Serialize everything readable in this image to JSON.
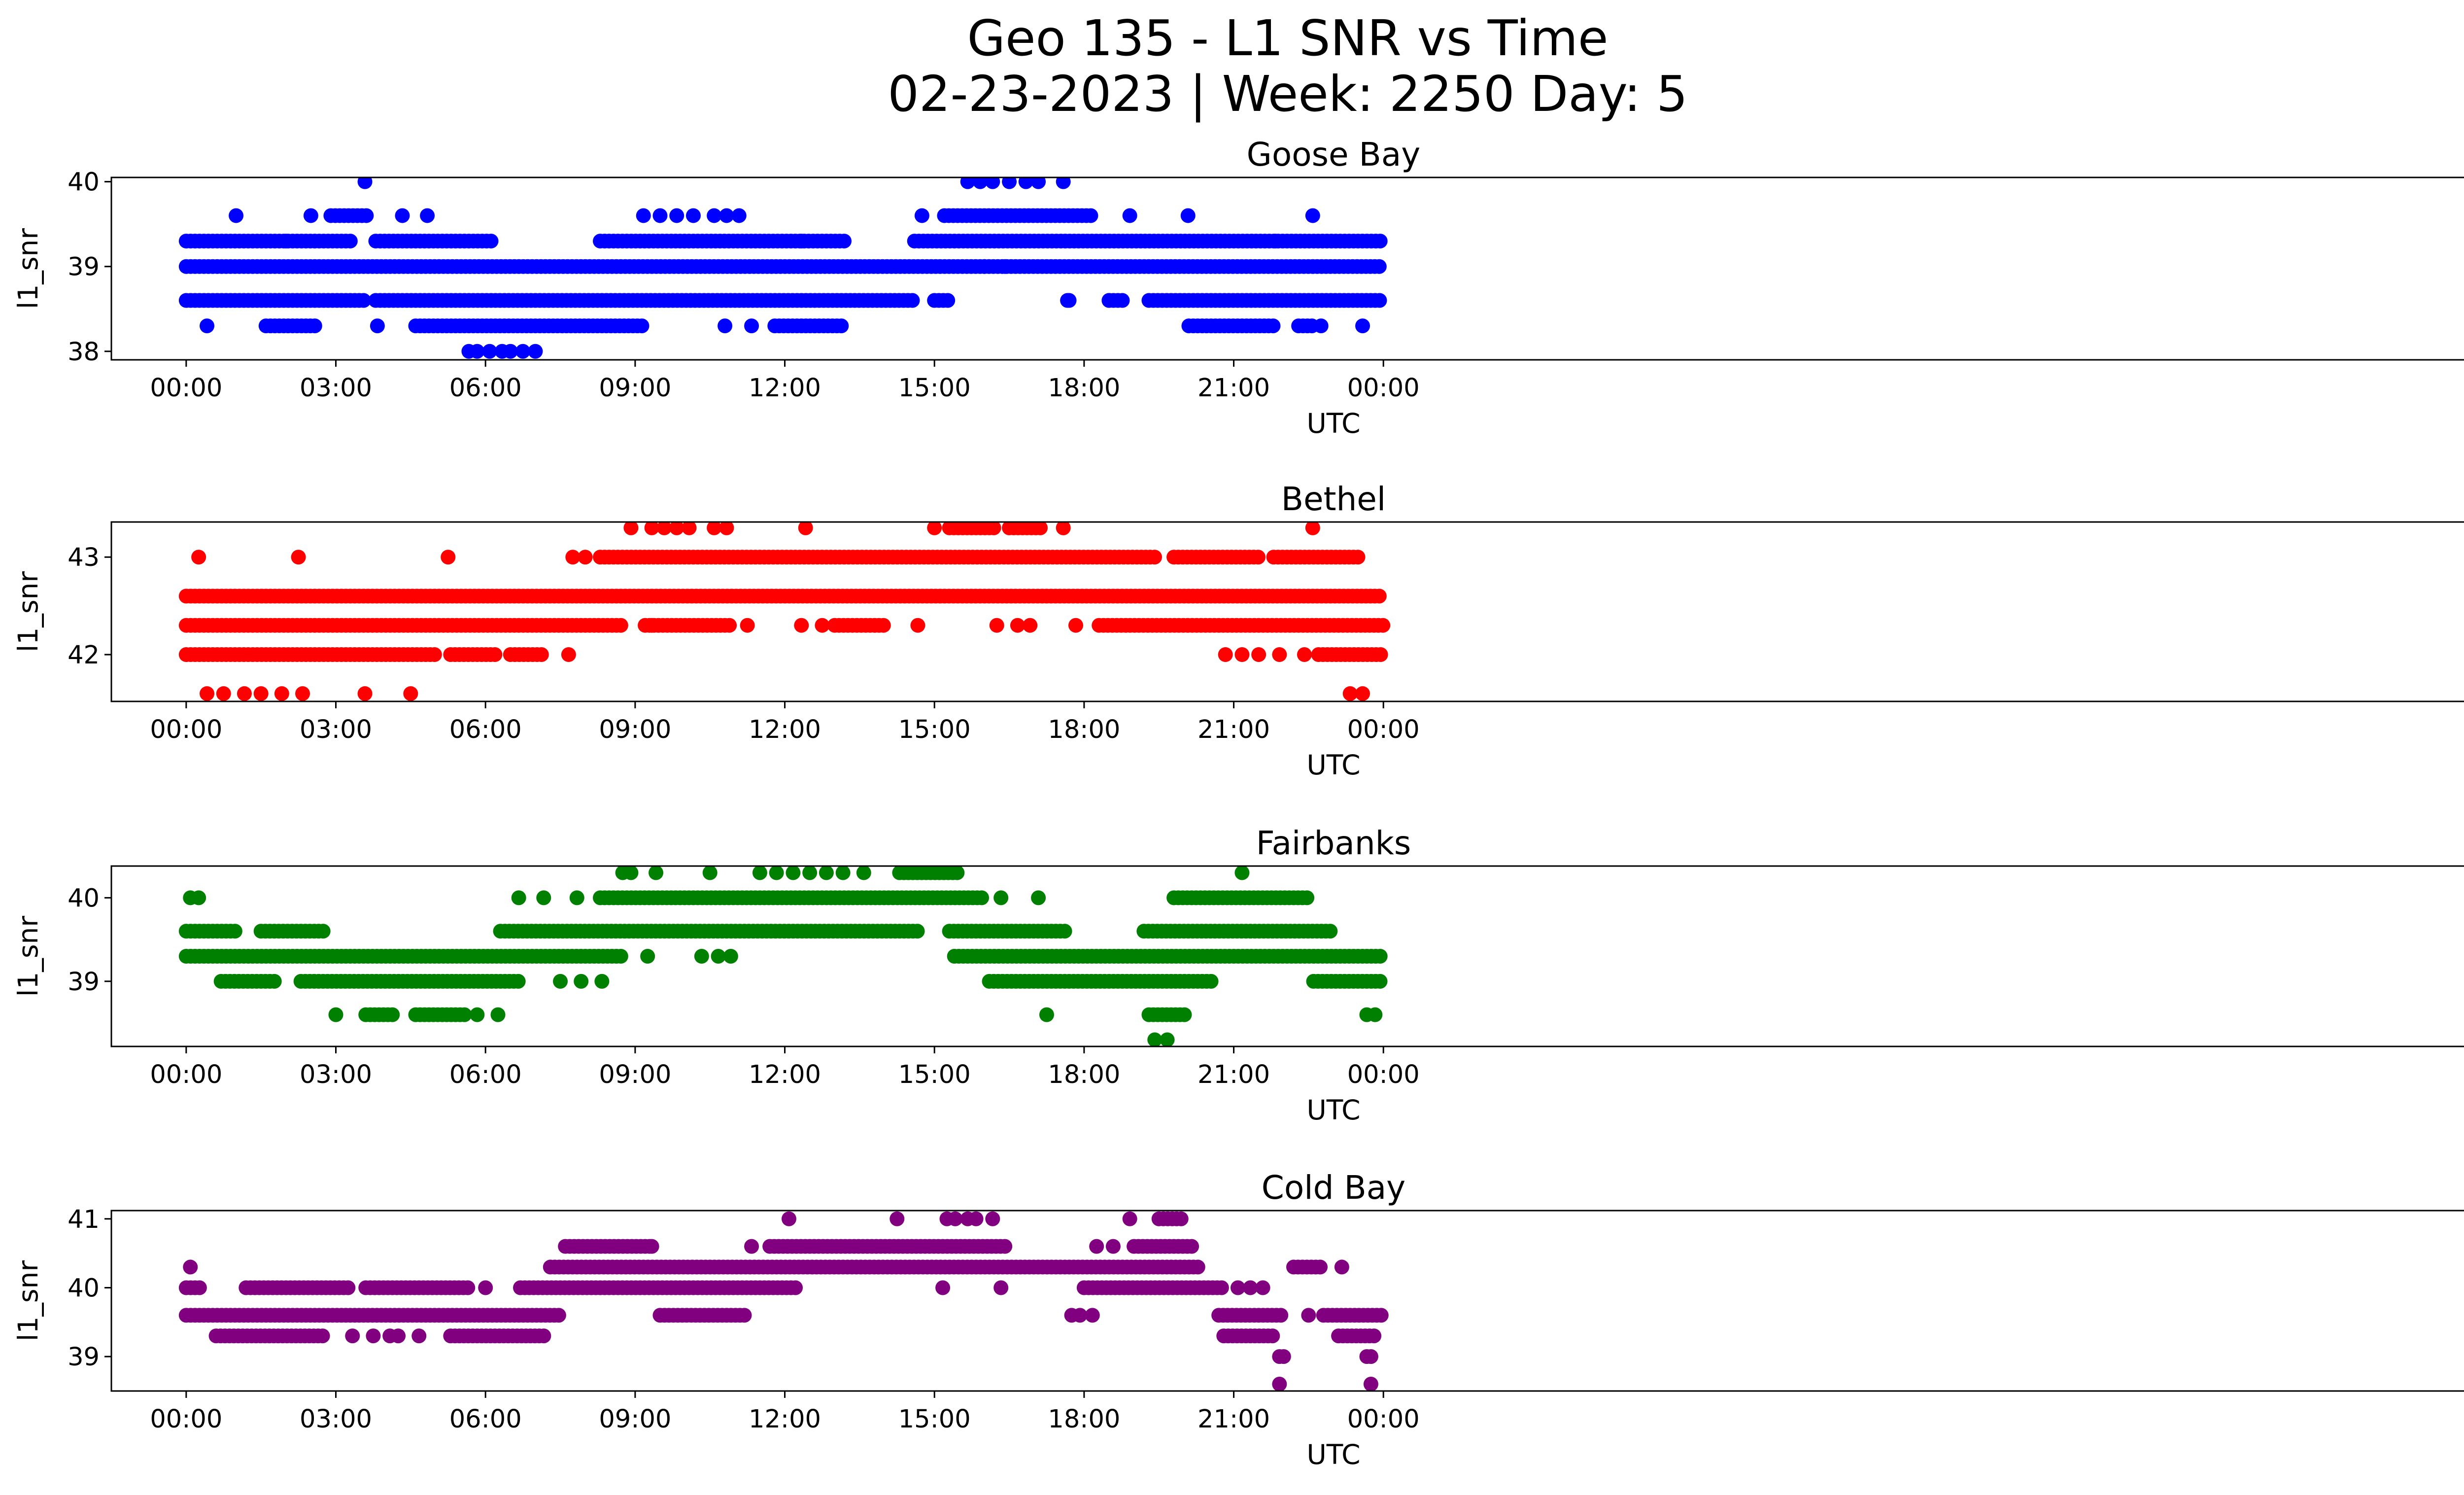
{
  "figure": {
    "title_line1": "Geo 135 - L1 SNR vs Time",
    "title_line2": "02-23-2023 | Week: 2250 Day: 5"
  },
  "chart_data": [
    {
      "type": "scatter",
      "title": "Goose Bay",
      "xlabel": "UTC",
      "ylabel": "l1_snr",
      "color": "#0000ff",
      "xlim": [
        "-01:30",
        "23:30 +1d"
      ],
      "ylim": [
        37.9,
        40.05
      ],
      "xticks": [
        "00:00",
        "03:00",
        "06:00",
        "09:00",
        "12:00",
        "15:00",
        "18:00",
        "21:00",
        "00:00"
      ],
      "yticks": [
        38,
        39,
        40
      ],
      "bands": [
        {
          "y": 39.3,
          "segments": [
            [
              0.0,
              3.3
            ],
            [
              3.8,
              6.2
            ],
            [
              8.3,
              13.2
            ],
            [
              14.6,
              24.0
            ]
          ]
        },
        {
          "y": 39.0,
          "segments": [
            [
              0.0,
              24.0
            ]
          ]
        },
        {
          "y": 38.6,
          "segments": [
            [
              0.0,
              3.6
            ],
            [
              3.8,
              14.6
            ],
            [
              15.0,
              15.3
            ],
            [
              17.7,
              17.7
            ],
            [
              18.5,
              18.8
            ],
            [
              19.3,
              24.0
            ]
          ]
        },
        {
          "y": 38.3,
          "segments": [
            [
              1.6,
              2.6
            ],
            [
              4.6,
              9.2
            ],
            [
              10.8,
              10.8
            ],
            [
              11.8,
              13.2
            ],
            [
              20.1,
              21.8
            ],
            [
              22.3,
              22.6
            ]
          ]
        },
        {
          "y": 39.6,
          "segments": [
            [
              2.9,
              3.7
            ],
            [
              15.2,
              18.2
            ]
          ]
        }
      ],
      "points": [
        [
          "00:25",
          38.3
        ],
        [
          "01:00",
          39.6
        ],
        [
          "02:00",
          39.3
        ],
        [
          "02:30",
          39.6
        ],
        [
          "03:35",
          40.0
        ],
        [
          "03:50",
          38.3
        ],
        [
          "04:20",
          39.6
        ],
        [
          "04:50",
          39.6
        ],
        [
          "05:40",
          38.0
        ],
        [
          "05:50",
          38.0
        ],
        [
          "06:05",
          38.0
        ],
        [
          "06:20",
          38.0
        ],
        [
          "06:30",
          38.0
        ],
        [
          "06:45",
          38.0
        ],
        [
          "07:00",
          38.0
        ],
        [
          "09:10",
          39.6
        ],
        [
          "09:30",
          39.6
        ],
        [
          "09:50",
          39.6
        ],
        [
          "10:10",
          39.6
        ],
        [
          "10:35",
          39.6
        ],
        [
          "10:50",
          39.6
        ],
        [
          "11:05",
          39.6
        ],
        [
          "11:20",
          38.3
        ],
        [
          "12:20",
          39.3
        ],
        [
          "14:45",
          39.6
        ],
        [
          "15:40",
          40.0
        ],
        [
          "15:55",
          40.0
        ],
        [
          "16:10",
          40.0
        ],
        [
          "16:30",
          40.0
        ],
        [
          "16:50",
          40.0
        ],
        [
          "17:05",
          40.0
        ],
        [
          "17:35",
          40.0
        ],
        [
          "16:00",
          39.0
        ],
        [
          "16:25",
          39.0
        ],
        [
          "17:40",
          38.6
        ],
        [
          "18:30",
          38.6
        ],
        [
          "18:55",
          39.6
        ],
        [
          "20:05",
          39.6
        ],
        [
          "21:50",
          39.3
        ],
        [
          "22:35",
          39.6
        ],
        [
          "22:45",
          38.3
        ],
        [
          "23:35",
          38.3
        ]
      ]
    },
    {
      "type": "scatter",
      "title": "Bethel",
      "xlabel": "UTC",
      "ylabel": "l1_snr",
      "color": "#ff0000",
      "xlim": [
        "-01:30",
        "23:30 +1d"
      ],
      "ylim": [
        41.52,
        43.36
      ],
      "xticks": [
        "00:00",
        "03:00",
        "06:00",
        "09:00",
        "12:00",
        "15:00",
        "18:00",
        "21:00",
        "00:00"
      ],
      "yticks": [
        42,
        43
      ],
      "bands": [
        {
          "y": 42.6,
          "segments": [
            [
              0.0,
              24.0
            ]
          ]
        },
        {
          "y": 42.3,
          "segments": [
            [
              0.0,
              8.8
            ],
            [
              9.2,
              10.9
            ],
            [
              13.0,
              14.0
            ],
            [
              18.3,
              24.0
            ]
          ]
        },
        {
          "y": 42.0,
          "segments": [
            [
              0.0,
              5.0
            ],
            [
              5.3,
              6.2
            ],
            [
              6.5,
              7.2
            ],
            [
              22.7,
              24.0
            ]
          ]
        },
        {
          "y": 43.0,
          "segments": [
            [
              8.3,
              19.5
            ],
            [
              19.8,
              21.5
            ],
            [
              21.8,
              23.5
            ]
          ]
        },
        {
          "y": 43.3,
          "segments": [
            [
              15.3,
              16.2
            ],
            [
              16.5,
              17.2
            ]
          ]
        }
      ],
      "points": [
        [
          "00:15",
          43.0
        ],
        [
          "02:15",
          43.0
        ],
        [
          "05:15",
          43.0
        ],
        [
          "07:45",
          43.0
        ],
        [
          "08:00",
          43.0
        ],
        [
          "00:25",
          41.6
        ],
        [
          "00:45",
          41.6
        ],
        [
          "01:10",
          41.6
        ],
        [
          "01:30",
          41.6
        ],
        [
          "01:55",
          41.6
        ],
        [
          "02:20",
          41.6
        ],
        [
          "03:35",
          41.6
        ],
        [
          "04:30",
          41.6
        ],
        [
          "07:40",
          42.0
        ],
        [
          "08:55",
          43.3
        ],
        [
          "09:20",
          43.3
        ],
        [
          "09:35",
          43.3
        ],
        [
          "09:50",
          43.3
        ],
        [
          "10:05",
          43.3
        ],
        [
          "10:35",
          43.3
        ],
        [
          "10:50",
          43.3
        ],
        [
          "12:25",
          43.3
        ],
        [
          "15:00",
          43.3
        ],
        [
          "17:35",
          43.3
        ],
        [
          "22:35",
          43.3
        ],
        [
          "09:20",
          42.3
        ],
        [
          "11:15",
          42.3
        ],
        [
          "12:20",
          42.3
        ],
        [
          "12:45",
          42.3
        ],
        [
          "14:40",
          42.3
        ],
        [
          "16:15",
          42.3
        ],
        [
          "16:40",
          42.3
        ],
        [
          "16:55",
          42.3
        ],
        [
          "17:50",
          42.3
        ],
        [
          "20:50",
          42.0
        ],
        [
          "21:10",
          42.0
        ],
        [
          "21:30",
          42.0
        ],
        [
          "21:55",
          42.0
        ],
        [
          "22:25",
          42.0
        ],
        [
          "23:20",
          41.6
        ],
        [
          "23:35",
          41.6
        ]
      ]
    },
    {
      "type": "scatter",
      "title": "Fairbanks",
      "xlabel": "UTC",
      "ylabel": "l1_snr",
      "color": "#008000",
      "xlim": [
        "-01:30",
        "23:30 +1d"
      ],
      "ylim": [
        38.22,
        40.38
      ],
      "xticks": [
        "00:00",
        "03:00",
        "06:00",
        "09:00",
        "12:00",
        "15:00",
        "18:00",
        "21:00",
        "00:00"
      ],
      "yticks": [
        39,
        40
      ],
      "bands": [
        {
          "y": 39.6,
          "segments": [
            [
              0.0,
              1.0
            ],
            [
              1.5,
              2.8
            ],
            [
              6.3,
              14.7
            ],
            [
              15.3,
              17.7
            ],
            [
              19.2,
              23.0
            ]
          ]
        },
        {
          "y": 39.3,
          "segments": [
            [
              0.0,
              8.8
            ],
            [
              15.4,
              24.0
            ]
          ]
        },
        {
          "y": 39.0,
          "segments": [
            [
              0.7,
              1.8
            ],
            [
              2.3,
              6.7
            ],
            [
              16.1,
              20.6
            ],
            [
              22.6,
              24.0
            ]
          ]
        },
        {
          "y": 40.0,
          "segments": [
            [
              8.3,
              16.0
            ],
            [
              19.8,
              22.5
            ]
          ]
        },
        {
          "y": 40.3,
          "segments": [
            [
              14.3,
              15.5
            ]
          ]
        },
        {
          "y": 38.6,
          "segments": [
            [
              3.6,
              4.2
            ],
            [
              4.6,
              5.6
            ],
            [
              19.3,
              20.1
            ]
          ]
        }
      ],
      "points": [
        [
          "00:05",
          40.0
        ],
        [
          "00:15",
          40.0
        ],
        [
          "03:00",
          38.6
        ],
        [
          "05:50",
          38.6
        ],
        [
          "06:15",
          38.6
        ],
        [
          "06:40",
          40.0
        ],
        [
          "07:10",
          40.0
        ],
        [
          "07:30",
          39.0
        ],
        [
          "07:50",
          40.0
        ],
        [
          "07:55",
          39.0
        ],
        [
          "08:20",
          39.0
        ],
        [
          "08:45",
          40.3
        ],
        [
          "08:55",
          40.3
        ],
        [
          "09:25",
          40.3
        ],
        [
          "09:15",
          39.3
        ],
        [
          "10:20",
          39.3
        ],
        [
          "10:30",
          40.3
        ],
        [
          "10:40",
          39.3
        ],
        [
          "10:55",
          39.3
        ],
        [
          "11:30",
          40.3
        ],
        [
          "11:50",
          40.3
        ],
        [
          "12:10",
          40.3
        ],
        [
          "12:30",
          40.3
        ],
        [
          "12:50",
          40.3
        ],
        [
          "13:10",
          40.3
        ],
        [
          "13:35",
          40.3
        ],
        [
          "16:20",
          40.0
        ],
        [
          "17:05",
          40.0
        ],
        [
          "17:15",
          38.6
        ],
        [
          "19:25",
          38.3
        ],
        [
          "19:40",
          38.3
        ],
        [
          "21:10",
          40.3
        ],
        [
          "23:40",
          38.6
        ],
        [
          "23:50",
          38.6
        ]
      ]
    },
    {
      "type": "scatter",
      "title": "Cold Bay",
      "xlabel": "UTC",
      "ylabel": "l1_snr",
      "color": "#800080",
      "xlim": [
        "-01:30",
        "23:30 +1d"
      ],
      "ylim": [
        38.5,
        41.12
      ],
      "xticks": [
        "00:00",
        "03:00",
        "06:00",
        "09:00",
        "12:00",
        "15:00",
        "18:00",
        "21:00",
        "00:00"
      ],
      "yticks": [
        39,
        40,
        41
      ],
      "bands": [
        {
          "y": 40.0,
          "segments": [
            [
              0.0,
              0.3
            ],
            [
              1.2,
              3.3
            ],
            [
              3.6,
              5.7
            ],
            [
              6.7,
              12.3
            ],
            [
              18.0,
              20.8
            ]
          ]
        },
        {
          "y": 39.6,
          "segments": [
            [
              0.0,
              7.5
            ],
            [
              9.5,
              11.2
            ],
            [
              20.7,
              22.0
            ],
            [
              22.8,
              24.0
            ]
          ]
        },
        {
          "y": 39.3,
          "segments": [
            [
              0.6,
              2.8
            ],
            [
              5.3,
              7.2
            ],
            [
              20.8,
              21.8
            ],
            [
              23.1,
              23.9
            ]
          ]
        },
        {
          "y": 40.3,
          "segments": [
            [
              7.3,
              20.3
            ],
            [
              22.2,
              22.8
            ]
          ]
        },
        {
          "y": 40.6,
          "segments": [
            [
              7.6,
              9.3
            ],
            [
              11.7,
              16.5
            ],
            [
              19.0,
              20.2
            ]
          ]
        },
        {
          "y": 41.0,
          "segments": [
            [
              19.5,
              20.0
            ]
          ]
        }
      ],
      "points": [
        [
          "00:05",
          40.3
        ],
        [
          "03:20",
          39.3
        ],
        [
          "03:45",
          39.3
        ],
        [
          "04:05",
          39.3
        ],
        [
          "04:15",
          39.3
        ],
        [
          "04:40",
          39.3
        ],
        [
          "06:00",
          40.0
        ],
        [
          "09:20",
          40.6
        ],
        [
          "11:20",
          40.6
        ],
        [
          "12:05",
          41.0
        ],
        [
          "14:15",
          41.0
        ],
        [
          "15:15",
          41.0
        ],
        [
          "15:25",
          41.0
        ],
        [
          "15:40",
          41.0
        ],
        [
          "15:50",
          41.0
        ],
        [
          "16:10",
          41.0
        ],
        [
          "16:20",
          40.0
        ],
        [
          "15:10",
          40.0
        ],
        [
          "17:45",
          39.6
        ],
        [
          "17:55",
          39.6
        ],
        [
          "18:10",
          39.6
        ],
        [
          "18:15",
          40.6
        ],
        [
          "18:35",
          40.6
        ],
        [
          "18:55",
          41.0
        ],
        [
          "21:05",
          40.0
        ],
        [
          "21:20",
          40.0
        ],
        [
          "21:35",
          40.0
        ],
        [
          "21:55",
          39.0
        ],
        [
          "22:00",
          39.0
        ],
        [
          "21:55",
          38.6
        ],
        [
          "22:30",
          39.6
        ],
        [
          "23:10",
          40.3
        ],
        [
          "23:40",
          39.0
        ],
        [
          "23:45",
          39.0
        ],
        [
          "23:45",
          38.6
        ]
      ]
    }
  ]
}
